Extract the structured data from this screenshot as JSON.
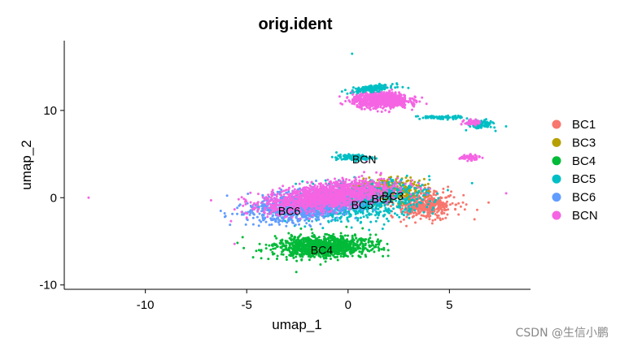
{
  "watermark": "CSDN @生信小鹏",
  "chart_data": {
    "type": "scatter",
    "title": "orig.ident",
    "xlabel": "umap_1",
    "ylabel": "umap_2",
    "xlim": [
      -14,
      9
    ],
    "ylim": [
      -10.5,
      18
    ],
    "xticks": [
      -10,
      -5,
      0,
      5
    ],
    "yticks": [
      -10,
      0,
      10
    ],
    "grid": false,
    "legend_position": "right",
    "series": [
      {
        "name": "BC1",
        "color": "#F8766D"
      },
      {
        "name": "BC3",
        "color": "#B79F00"
      },
      {
        "name": "BC4",
        "color": "#00BA38"
      },
      {
        "name": "BC5",
        "color": "#00BFC4"
      },
      {
        "name": "BC6",
        "color": "#619CFF"
      },
      {
        "name": "BCN",
        "color": "#F564E3"
      }
    ],
    "cluster_labels": [
      {
        "text": "BCN",
        "x": 0.8,
        "y": 4.4
      },
      {
        "text": "BC3",
        "x": 2.2,
        "y": 0.2
      },
      {
        "text": "BC1",
        "x": 1.7,
        "y": -0.1
      },
      {
        "text": "BC5",
        "x": 0.7,
        "y": -0.8
      },
      {
        "text": "BC6",
        "x": -2.9,
        "y": -1.5
      },
      {
        "text": "BC4",
        "x": -1.3,
        "y": -6.0
      }
    ]
  }
}
